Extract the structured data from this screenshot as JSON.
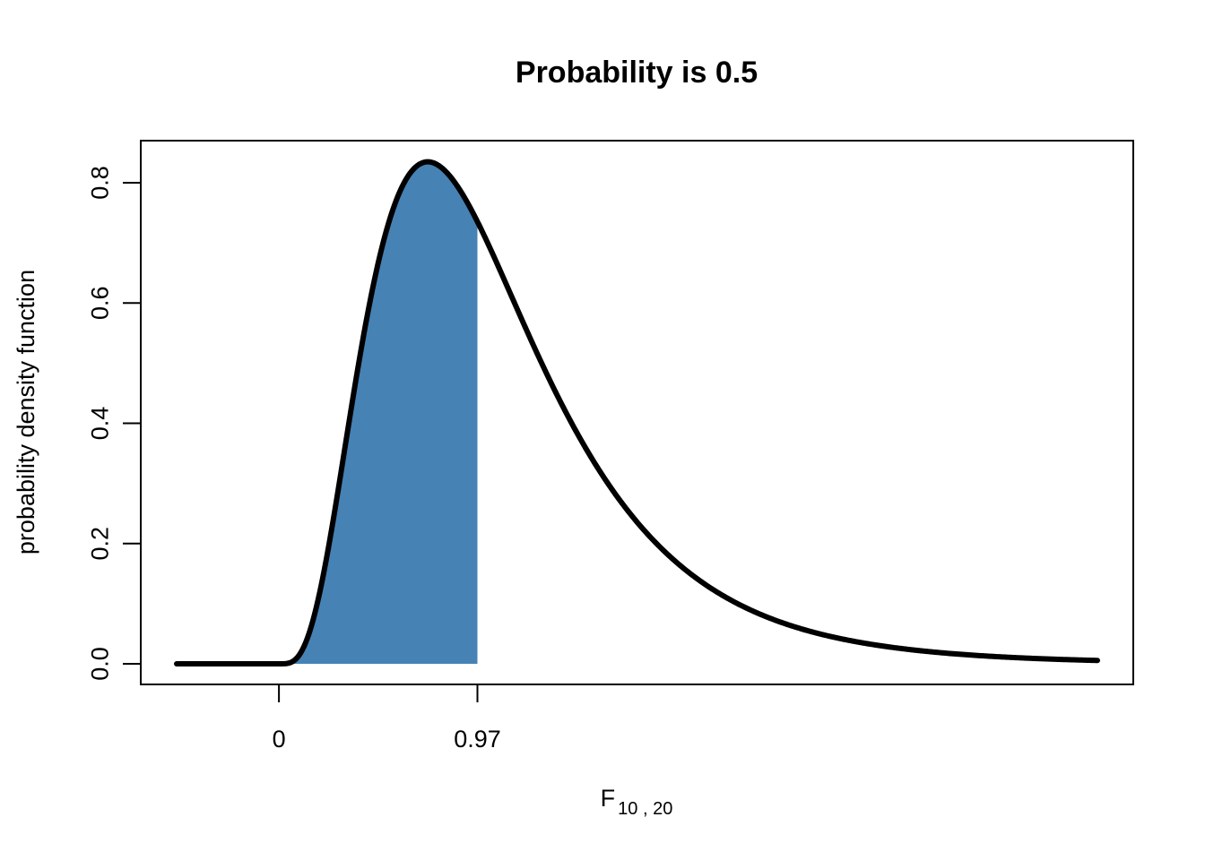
{
  "chart_data": {
    "type": "area",
    "title": "Probability is 0.5",
    "xlabel_main": "F",
    "xlabel_sub": "10 , 20",
    "ylabel": "probability  density  function",
    "distribution": {
      "name": "F",
      "df1": 10,
      "df2": 20
    },
    "xlim": [
      -0.5,
      4.0
    ],
    "ylim": [
      0,
      0.83
    ],
    "x_ticks": [
      {
        "value": 0,
        "label": "0"
      },
      {
        "value": 0.97,
        "label": "0.97"
      }
    ],
    "y_ticks": [
      {
        "value": 0.0,
        "label": "0.0"
      },
      {
        "value": 0.2,
        "label": "0.2"
      },
      {
        "value": 0.4,
        "label": "0.4"
      },
      {
        "value": 0.6,
        "label": "0.6"
      },
      {
        "value": 0.8,
        "label": "0.8"
      }
    ],
    "shaded_region": {
      "from": 0,
      "to": 0.97,
      "probability": 0.5
    },
    "curve_points": [
      {
        "x": -0.5,
        "y": 0.0
      },
      {
        "x": 0.0,
        "y": 0.0
      },
      {
        "x": 0.1,
        "y": 0.004
      },
      {
        "x": 0.2,
        "y": 0.06
      },
      {
        "x": 0.3,
        "y": 0.23
      },
      {
        "x": 0.4,
        "y": 0.46
      },
      {
        "x": 0.5,
        "y": 0.66
      },
      {
        "x": 0.6,
        "y": 0.78
      },
      {
        "x": 0.7,
        "y": 0.83
      },
      {
        "x": 0.8,
        "y": 0.83
      },
      {
        "x": 0.9,
        "y": 0.78
      },
      {
        "x": 0.97,
        "y": 0.74
      },
      {
        "x": 1.0,
        "y": 0.72
      },
      {
        "x": 1.2,
        "y": 0.57
      },
      {
        "x": 1.4,
        "y": 0.42
      },
      {
        "x": 1.6,
        "y": 0.3
      },
      {
        "x": 1.8,
        "y": 0.21
      },
      {
        "x": 2.0,
        "y": 0.15
      },
      {
        "x": 2.5,
        "y": 0.074
      },
      {
        "x": 3.0,
        "y": 0.045
      },
      {
        "x": 3.5,
        "y": 0.03
      },
      {
        "x": 4.0,
        "y": 0.022
      }
    ],
    "colors": {
      "fill": "#4682B4",
      "line": "#000000",
      "axis": "#000000",
      "background": "#ffffff"
    }
  }
}
